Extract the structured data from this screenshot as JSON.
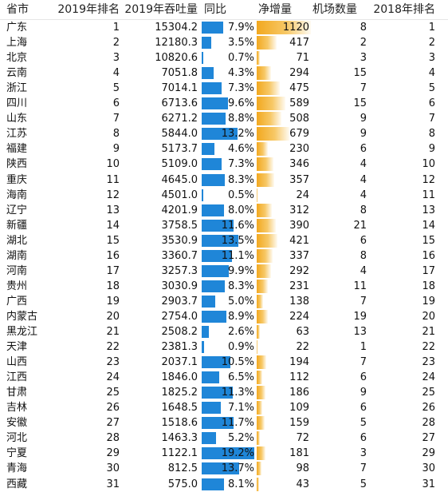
{
  "headers": {
    "province": "省市",
    "rank2019": "2019年排名",
    "throughput2019": "2019年吞吐量",
    "yoy": "同比",
    "net_increase": "净增量",
    "airports": "机场数量",
    "rank2018": "2018年排名"
  },
  "rows": [
    {
      "province": "广东",
      "rank2019": "1",
      "throughput": "15304.2",
      "yoy": "7.9%",
      "yoy_value": 7.9,
      "net": "1120",
      "net_value": 1120,
      "airports": "8",
      "rank2018": "1"
    },
    {
      "province": "上海",
      "rank2019": "2",
      "throughput": "12180.3",
      "yoy": "3.5%",
      "yoy_value": 3.5,
      "net": "417",
      "net_value": 417,
      "airports": "2",
      "rank2018": "2"
    },
    {
      "province": "北京",
      "rank2019": "3",
      "throughput": "10820.6",
      "yoy": "0.7%",
      "yoy_value": 0.7,
      "net": "71",
      "net_value": 71,
      "airports": "3",
      "rank2018": "3"
    },
    {
      "province": "云南",
      "rank2019": "4",
      "throughput": "7051.8",
      "yoy": "4.3%",
      "yoy_value": 4.3,
      "net": "294",
      "net_value": 294,
      "airports": "15",
      "rank2018": "4"
    },
    {
      "province": "浙江",
      "rank2019": "5",
      "throughput": "7014.1",
      "yoy": "7.3%",
      "yoy_value": 7.3,
      "net": "475",
      "net_value": 475,
      "airports": "7",
      "rank2018": "5"
    },
    {
      "province": "四川",
      "rank2019": "6",
      "throughput": "6713.6",
      "yoy": "9.6%",
      "yoy_value": 9.6,
      "net": "589",
      "net_value": 589,
      "airports": "15",
      "rank2018": "6"
    },
    {
      "province": "山东",
      "rank2019": "7",
      "throughput": "6271.2",
      "yoy": "8.8%",
      "yoy_value": 8.8,
      "net": "508",
      "net_value": 508,
      "airports": "9",
      "rank2018": "7"
    },
    {
      "province": "江苏",
      "rank2019": "8",
      "throughput": "5844.0",
      "yoy": "13.2%",
      "yoy_value": 13.2,
      "net": "679",
      "net_value": 679,
      "airports": "9",
      "rank2018": "8"
    },
    {
      "province": "福建",
      "rank2019": "9",
      "throughput": "5173.7",
      "yoy": "4.6%",
      "yoy_value": 4.6,
      "net": "230",
      "net_value": 230,
      "airports": "6",
      "rank2018": "9"
    },
    {
      "province": "陕西",
      "rank2019": "10",
      "throughput": "5109.0",
      "yoy": "7.3%",
      "yoy_value": 7.3,
      "net": "346",
      "net_value": 346,
      "airports": "4",
      "rank2018": "10"
    },
    {
      "province": "重庆",
      "rank2019": "11",
      "throughput": "4645.0",
      "yoy": "8.3%",
      "yoy_value": 8.3,
      "net": "357",
      "net_value": 357,
      "airports": "4",
      "rank2018": "12"
    },
    {
      "province": "海南",
      "rank2019": "12",
      "throughput": "4501.0",
      "yoy": "0.5%",
      "yoy_value": 0.5,
      "net": "24",
      "net_value": 24,
      "airports": "4",
      "rank2018": "11"
    },
    {
      "province": "辽宁",
      "rank2019": "13",
      "throughput": "4201.9",
      "yoy": "8.0%",
      "yoy_value": 8.0,
      "net": "312",
      "net_value": 312,
      "airports": "8",
      "rank2018": "13"
    },
    {
      "province": "新疆",
      "rank2019": "14",
      "throughput": "3758.5",
      "yoy": "11.6%",
      "yoy_value": 11.6,
      "net": "390",
      "net_value": 390,
      "airports": "21",
      "rank2018": "14"
    },
    {
      "province": "湖北",
      "rank2019": "15",
      "throughput": "3530.9",
      "yoy": "13.5%",
      "yoy_value": 13.5,
      "net": "421",
      "net_value": 421,
      "airports": "6",
      "rank2018": "15"
    },
    {
      "province": "湖南",
      "rank2019": "16",
      "throughput": "3360.7",
      "yoy": "11.1%",
      "yoy_value": 11.1,
      "net": "337",
      "net_value": 337,
      "airports": "8",
      "rank2018": "16"
    },
    {
      "province": "河南",
      "rank2019": "17",
      "throughput": "3257.3",
      "yoy": "9.9%",
      "yoy_value": 9.9,
      "net": "292",
      "net_value": 292,
      "airports": "4",
      "rank2018": "17"
    },
    {
      "province": "贵州",
      "rank2019": "18",
      "throughput": "3030.9",
      "yoy": "8.3%",
      "yoy_value": 8.3,
      "net": "231",
      "net_value": 231,
      "airports": "11",
      "rank2018": "18"
    },
    {
      "province": "广西",
      "rank2019": "19",
      "throughput": "2903.7",
      "yoy": "5.0%",
      "yoy_value": 5.0,
      "net": "138",
      "net_value": 138,
      "airports": "7",
      "rank2018": "19"
    },
    {
      "province": "内蒙古",
      "rank2019": "20",
      "throughput": "2754.0",
      "yoy": "8.9%",
      "yoy_value": 8.9,
      "net": "224",
      "net_value": 224,
      "airports": "19",
      "rank2018": "20"
    },
    {
      "province": "黑龙江",
      "rank2019": "21",
      "throughput": "2508.2",
      "yoy": "2.6%",
      "yoy_value": 2.6,
      "net": "63",
      "net_value": 63,
      "airports": "13",
      "rank2018": "21"
    },
    {
      "province": "天津",
      "rank2019": "22",
      "throughput": "2381.3",
      "yoy": "0.9%",
      "yoy_value": 0.9,
      "net": "22",
      "net_value": 22,
      "airports": "1",
      "rank2018": "22"
    },
    {
      "province": "山西",
      "rank2019": "23",
      "throughput": "2037.1",
      "yoy": "10.5%",
      "yoy_value": 10.5,
      "net": "194",
      "net_value": 194,
      "airports": "7",
      "rank2018": "23"
    },
    {
      "province": "江西",
      "rank2019": "24",
      "throughput": "1846.0",
      "yoy": "6.5%",
      "yoy_value": 6.5,
      "net": "112",
      "net_value": 112,
      "airports": "6",
      "rank2018": "24"
    },
    {
      "province": "甘肃",
      "rank2019": "25",
      "throughput": "1825.2",
      "yoy": "11.3%",
      "yoy_value": 11.3,
      "net": "186",
      "net_value": 186,
      "airports": "9",
      "rank2018": "25"
    },
    {
      "province": "吉林",
      "rank2019": "26",
      "throughput": "1648.5",
      "yoy": "7.1%",
      "yoy_value": 7.1,
      "net": "109",
      "net_value": 109,
      "airports": "6",
      "rank2018": "26"
    },
    {
      "province": "安徽",
      "rank2019": "27",
      "throughput": "1518.6",
      "yoy": "11.7%",
      "yoy_value": 11.7,
      "net": "159",
      "net_value": 159,
      "airports": "5",
      "rank2018": "28"
    },
    {
      "province": "河北",
      "rank2019": "28",
      "throughput": "1463.3",
      "yoy": "5.2%",
      "yoy_value": 5.2,
      "net": "72",
      "net_value": 72,
      "airports": "6",
      "rank2018": "27"
    },
    {
      "province": "宁夏",
      "rank2019": "29",
      "throughput": "1122.1",
      "yoy": "19.2%",
      "yoy_value": 19.2,
      "net": "181",
      "net_value": 181,
      "airports": "3",
      "rank2018": "29"
    },
    {
      "province": "青海",
      "rank2019": "30",
      "throughput": "812.5",
      "yoy": "13.7%",
      "yoy_value": 13.7,
      "net": "98",
      "net_value": 98,
      "airports": "7",
      "rank2018": "30"
    },
    {
      "province": "西藏",
      "rank2019": "31",
      "throughput": "575.0",
      "yoy": "8.1%",
      "yoy_value": 8.1,
      "net": "43",
      "net_value": 43,
      "airports": "5",
      "rank2018": "31"
    }
  ],
  "colors": {
    "yoy_bar": "#1f86d8",
    "net_bar": "#f2a81f"
  }
}
